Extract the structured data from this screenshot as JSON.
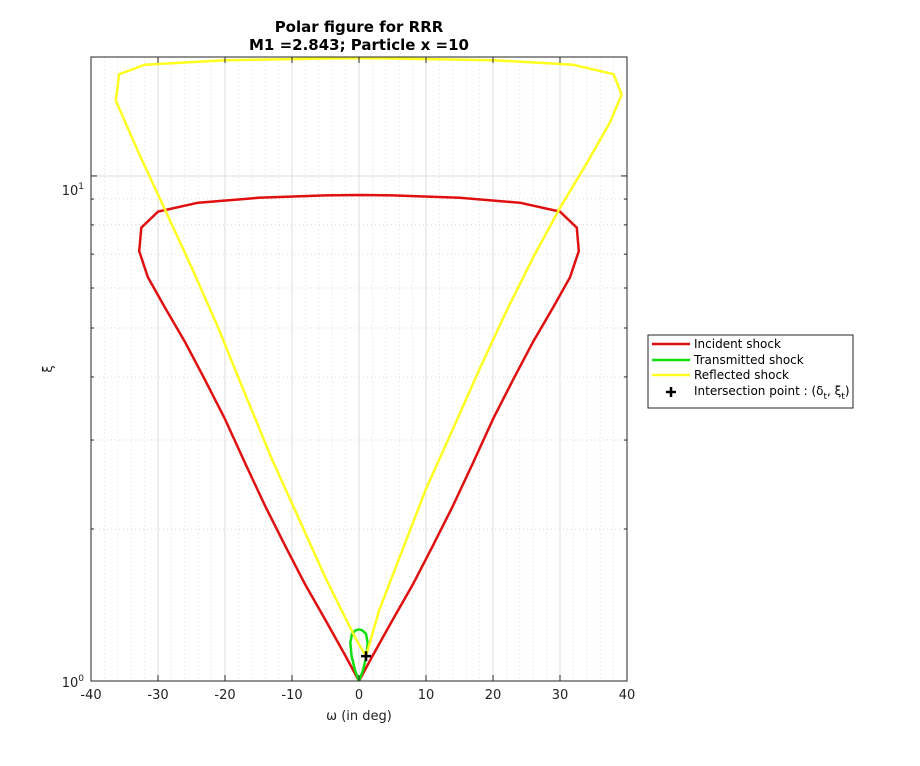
{
  "chart_data": {
    "type": "line",
    "title": "Polar figure for RRR",
    "subtitle": "M1 =2.843; Particle x =10",
    "xlabel": "ω (in deg)",
    "ylabel": "ξ",
    "xlim": [
      -40,
      40
    ],
    "ylim": [
      1,
      17.2
    ],
    "yscale": "log",
    "grid": true,
    "minor_grid": true,
    "legend_position": "outside-right",
    "x_ticks": [
      "-40",
      "-30",
      "-20",
      "-10",
      "0",
      "10",
      "20",
      "30",
      "40"
    ],
    "y_tick_labels": [
      {
        "value": 1,
        "base": "10",
        "exp": "0"
      },
      {
        "value": 10,
        "base": "10",
        "exp": "1"
      }
    ],
    "series": [
      {
        "name": "Incident shock",
        "color": "#e01010",
        "points": [
          [
            0,
            1
          ],
          [
            -2,
            1.12
          ],
          [
            -5,
            1.32
          ],
          [
            -8,
            1.55
          ],
          [
            -11,
            1.85
          ],
          [
            -14,
            2.22
          ],
          [
            -17,
            2.7
          ],
          [
            -20,
            3.3
          ],
          [
            -23,
            3.95
          ],
          [
            -26,
            4.7
          ],
          [
            -29,
            5.5
          ],
          [
            -31.5,
            6.3
          ],
          [
            -32.8,
            7.1
          ],
          [
            -32.5,
            7.9
          ],
          [
            -30,
            8.5
          ],
          [
            -24,
            8.85
          ],
          [
            -15,
            9.05
          ],
          [
            -5,
            9.15
          ],
          [
            0,
            9.17
          ],
          [
            5,
            9.15
          ],
          [
            15,
            9.05
          ],
          [
            24,
            8.85
          ],
          [
            30,
            8.5
          ],
          [
            32.5,
            7.9
          ],
          [
            32.8,
            7.1
          ],
          [
            31.5,
            6.3
          ],
          [
            29,
            5.5
          ],
          [
            26,
            4.7
          ],
          [
            23,
            3.95
          ],
          [
            20,
            3.3
          ],
          [
            17,
            2.7
          ],
          [
            14,
            2.22
          ],
          [
            11,
            1.85
          ],
          [
            8,
            1.55
          ],
          [
            5,
            1.32
          ],
          [
            2,
            1.12
          ],
          [
            0,
            1
          ]
        ]
      },
      {
        "name": "Transmitted shock",
        "color": "#10e010",
        "points": [
          [
            0,
            1
          ],
          [
            -0.6,
            1.05
          ],
          [
            -1.1,
            1.12
          ],
          [
            -1.3,
            1.19
          ],
          [
            -1.05,
            1.24
          ],
          [
            -0.5,
            1.26
          ],
          [
            0,
            1.265
          ],
          [
            0.5,
            1.26
          ],
          [
            1.05,
            1.24
          ],
          [
            1.3,
            1.19
          ],
          [
            1.1,
            1.12
          ],
          [
            0.6,
            1.05
          ],
          [
            0,
            1
          ]
        ]
      },
      {
        "name": "Reflected shock",
        "color": "#ffff20",
        "points": [
          [
            1.05,
            1.12
          ],
          [
            -0.3,
            1.2
          ],
          [
            -2,
            1.33
          ],
          [
            -5,
            1.6
          ],
          [
            -9,
            2.1
          ],
          [
            -13,
            2.75
          ],
          [
            -17,
            3.7
          ],
          [
            -21,
            5.0
          ],
          [
            -25,
            6.6
          ],
          [
            -29,
            8.6
          ],
          [
            -33,
            11.2
          ],
          [
            -36.3,
            14.1
          ],
          [
            -35.8,
            15.9
          ],
          [
            -32,
            16.6
          ],
          [
            -20,
            16.95
          ],
          [
            -5,
            17.08
          ],
          [
            0,
            17.1
          ],
          [
            5,
            17.08
          ],
          [
            20,
            16.95
          ],
          [
            32,
            16.6
          ],
          [
            38,
            15.9
          ],
          [
            39.2,
            14.5
          ],
          [
            37.5,
            12.8
          ],
          [
            34,
            10.6
          ],
          [
            30,
            8.65
          ],
          [
            26,
            6.9
          ],
          [
            22,
            5.4
          ],
          [
            18,
            4.15
          ],
          [
            14,
            3.15
          ],
          [
            10,
            2.4
          ],
          [
            6,
            1.75
          ],
          [
            3,
            1.38
          ],
          [
            1.05,
            1.12
          ]
        ]
      }
    ],
    "intersection_point": {
      "name": "Intersection point : (δt, ξt)",
      "x": 1.05,
      "y": 1.12,
      "color": "#000000"
    }
  }
}
